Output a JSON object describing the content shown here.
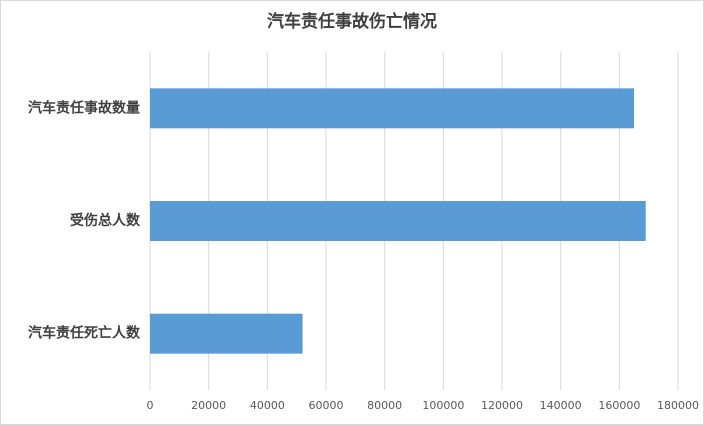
{
  "chart_data": {
    "type": "hbar",
    "title": "汽车责任事故伤亡情况",
    "categories": [
      "汽车责任事故数量",
      "受伤总人数",
      "汽车责任死亡人数"
    ],
    "values": [
      165000,
      169000,
      52000
    ],
    "color": "#5b9bd5",
    "xlim": [
      0,
      180000
    ],
    "xticks": [
      0,
      20000,
      40000,
      60000,
      80000,
      100000,
      120000,
      140000,
      160000,
      180000
    ],
    "grid": true
  }
}
